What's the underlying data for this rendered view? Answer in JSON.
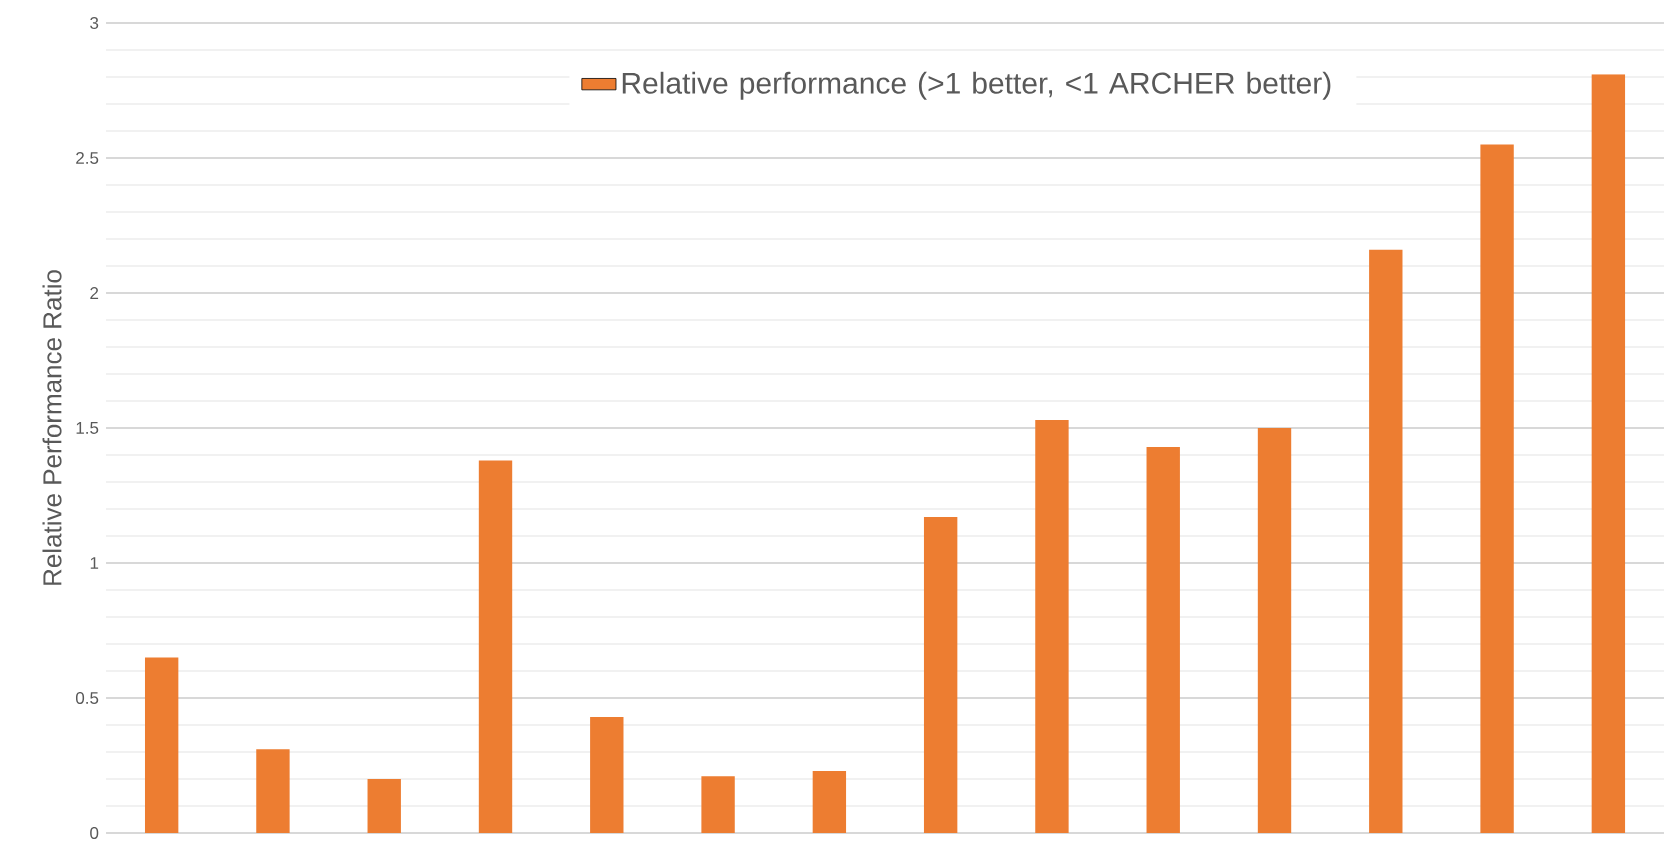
{
  "chart_data": {
    "type": "bar",
    "ylabel": "Relative Performance Ratio",
    "categories": [
      null,
      null,
      null,
      null,
      null,
      null,
      null,
      null,
      null,
      null,
      null,
      null,
      null,
      null
    ],
    "series": [
      {
        "name": "Relative performance (>1 better, <1 ARCHER better)",
        "color": "#ed7d31",
        "values": [
          0.65,
          0.31,
          0.2,
          1.38,
          0.43,
          0.21,
          0.23,
          1.17,
          1.53,
          1.43,
          1.5,
          2.16,
          2.55,
          2.81
        ]
      }
    ],
    "ylim": [
      0,
      3
    ],
    "yticks": [
      0,
      0.5,
      1,
      1.5,
      2,
      2.5,
      3
    ],
    "tick_labels": "y",
    "grid": "y",
    "legend": "top"
  }
}
